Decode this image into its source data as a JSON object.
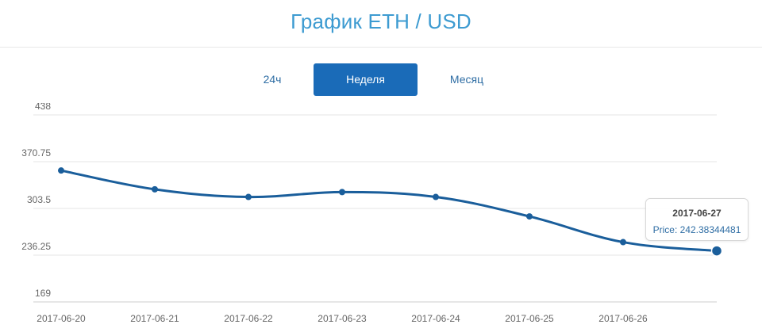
{
  "header": {
    "title": "График ETH / USD"
  },
  "tabs": [
    {
      "label": "24ч",
      "active": false
    },
    {
      "label": "Неделя",
      "active": true
    },
    {
      "label": "Месяц",
      "active": false
    }
  ],
  "colors": {
    "title": "#3d9bd1",
    "line": "#1a5e9b",
    "active_tab": "#1a6bb8",
    "grid": "#e6e6e6"
  },
  "tooltip": {
    "date": "2017-06-27",
    "label": "Price: 242.38344481"
  },
  "chart_data": {
    "type": "line",
    "x": [
      "2017-06-20",
      "2017-06-21",
      "2017-06-22",
      "2017-06-23",
      "2017-06-24",
      "2017-06-25",
      "2017-06-26",
      "2017-06-27"
    ],
    "x_tick_labels": [
      "2017-06-20",
      "2017-06-21",
      "2017-06-22",
      "2017-06-23",
      "2017-06-24",
      "2017-06-25",
      "2017-06-26"
    ],
    "values": [
      358,
      331,
      320,
      327,
      320,
      292,
      255,
      242.38344481
    ],
    "y_ticks": [
      "169",
      "236.25",
      "303.5",
      "370.75",
      "438"
    ],
    "ylim": [
      169,
      438
    ],
    "grid": true,
    "highlighted_index": 7
  }
}
